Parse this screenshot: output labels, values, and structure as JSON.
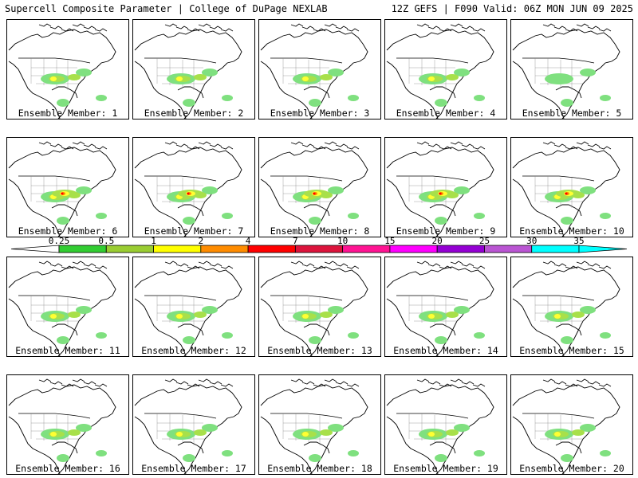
{
  "header": {
    "title_left": "Supercell Composite Parameter | College of DuPage NEXLAB",
    "title_right": "12Z GEFS | F090 Valid: 06Z MON JUN 09 2025"
  },
  "panels": [
    {
      "label": "Ensemble Member: 1",
      "intensity": 2
    },
    {
      "label": "Ensemble Member: 2",
      "intensity": 2
    },
    {
      "label": "Ensemble Member: 3",
      "intensity": 2
    },
    {
      "label": "Ensemble Member: 4",
      "intensity": 2
    },
    {
      "label": "Ensemble Member: 5",
      "intensity": 1
    },
    {
      "label": "Ensemble Member: 6",
      "intensity": 3
    },
    {
      "label": "Ensemble Member: 7",
      "intensity": 3
    },
    {
      "label": "Ensemble Member: 8",
      "intensity": 3
    },
    {
      "label": "Ensemble Member: 9",
      "intensity": 3
    },
    {
      "label": "Ensemble Member: 10",
      "intensity": 3
    },
    {
      "label": "Ensemble Member: 11",
      "intensity": 2
    },
    {
      "label": "Ensemble Member: 12",
      "intensity": 2
    },
    {
      "label": "Ensemble Member: 13",
      "intensity": 2
    },
    {
      "label": "Ensemble Member: 14",
      "intensity": 2
    },
    {
      "label": "Ensemble Member: 15",
      "intensity": 2
    },
    {
      "label": "Ensemble Member: 16",
      "intensity": 2
    },
    {
      "label": "Ensemble Member: 17",
      "intensity": 2
    },
    {
      "label": "Ensemble Member: 18",
      "intensity": 2
    },
    {
      "label": "Ensemble Member: 19",
      "intensity": 2
    },
    {
      "label": "Ensemble Member: 20",
      "intensity": 2
    }
  ],
  "colorbar": {
    "ticks": [
      "0.25",
      "0.5",
      "1",
      "2",
      "4",
      "7",
      "10",
      "15",
      "20",
      "25",
      "30",
      "35"
    ],
    "colors": [
      "#ffffff",
      "#32cd32",
      "#9acd32",
      "#ffff00",
      "#ff8c00",
      "#ff0000",
      "#dc143c",
      "#ff1493",
      "#ff00ff",
      "#9400d3",
      "#ba55d3",
      "#00ffff"
    ]
  },
  "legend_colors": {
    "light": "#7fe07f",
    "mid": "#a8e04a",
    "warm": "#ffff33",
    "hot": "#ff8800",
    "max": "#ff0000"
  }
}
